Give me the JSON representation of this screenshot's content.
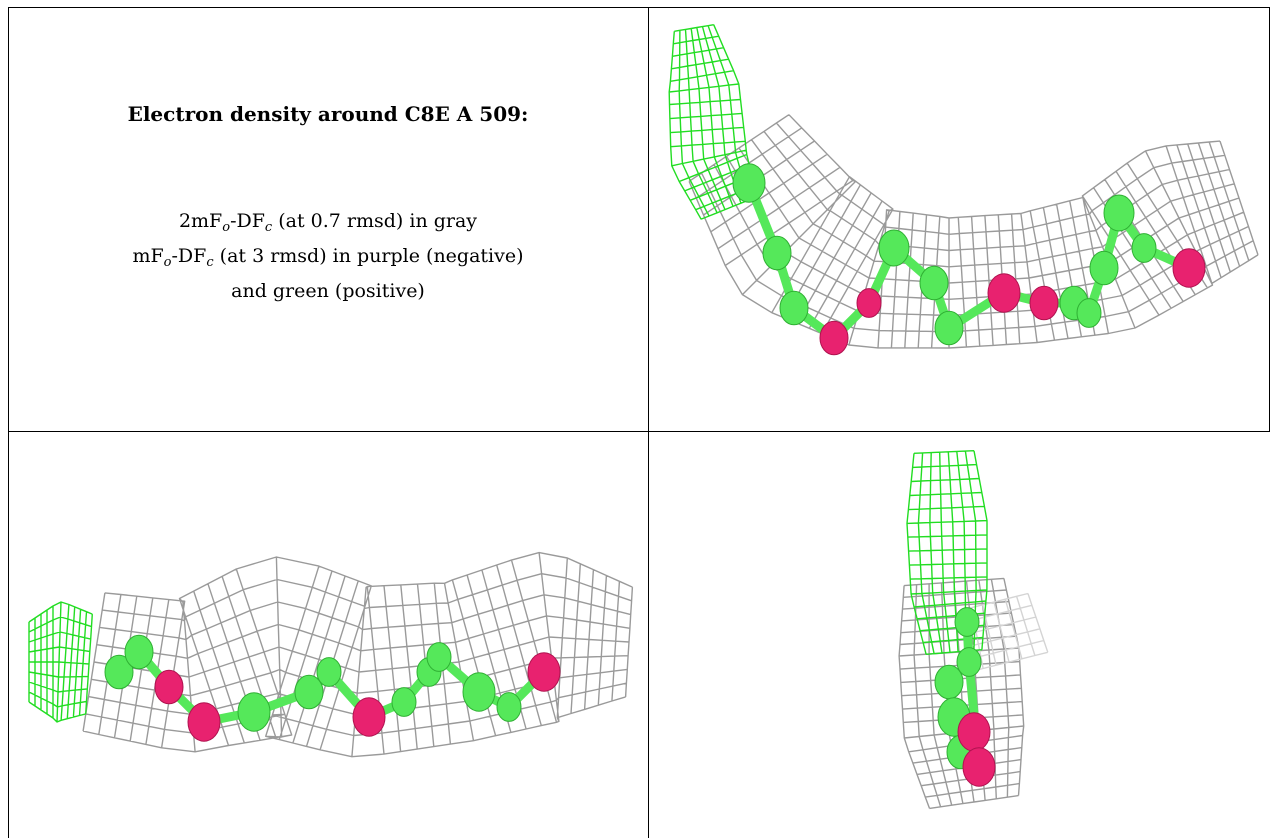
{
  "caption": {
    "title": "Electron density around C8E A 509:",
    "line1": {
      "pre": "2mF",
      "sub1": "o",
      "mid": "-DF",
      "sub2": "c",
      "post": " (at 0.7 rmsd) in gray"
    },
    "line2": {
      "pre": "mF",
      "sub1": "o",
      "mid": "-DF",
      "sub2": "c",
      "post": " (at 3 rmsd) in purple (negative)"
    },
    "line3": "and green (positive)"
  },
  "colors": {
    "mesh_gray": "#9a9a9a",
    "mesh_green": "#22dd22",
    "atom_carbon": "#55e85a",
    "atom_oxygen": "#e8226f"
  },
  "panels": [
    {
      "name": "view-top-right",
      "orientation": "diagonal"
    },
    {
      "name": "view-bottom-left",
      "orientation": "horizontal"
    },
    {
      "name": "view-bottom-right",
      "orientation": "end-on"
    }
  ]
}
